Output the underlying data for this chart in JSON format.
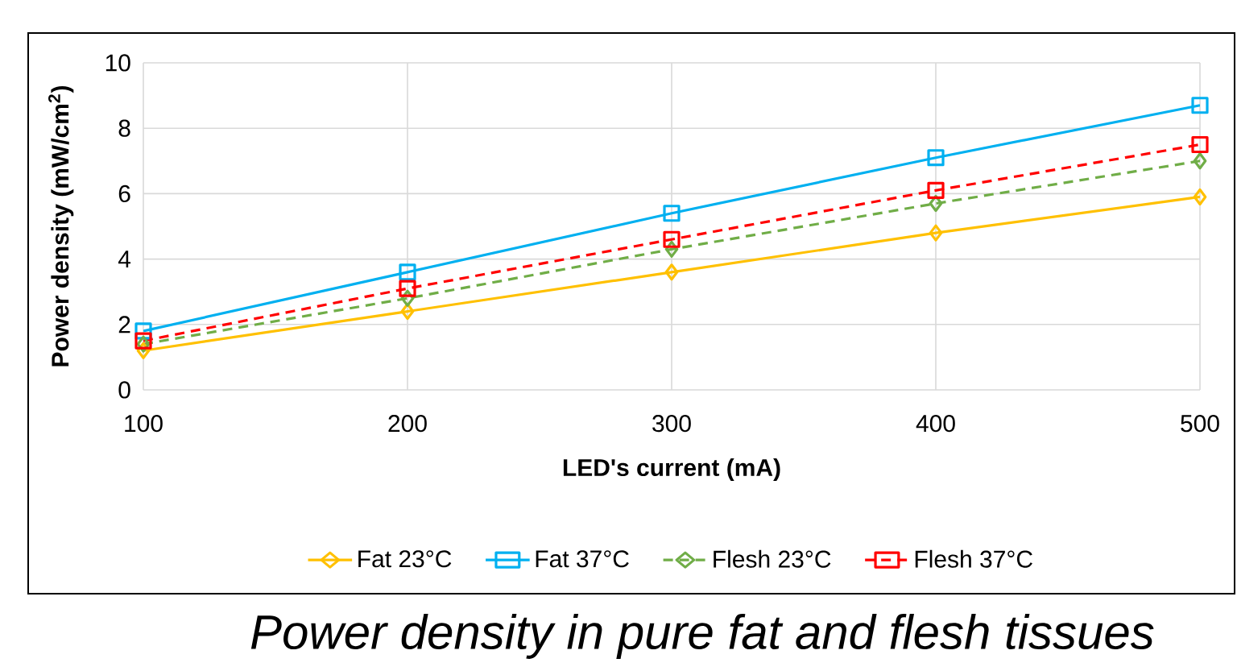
{
  "chart_data": {
    "type": "line",
    "title": "Power density in pure fat and flesh tissues",
    "xlabel": "LED's current (mA)",
    "ylabel": "Power density (mW/cm$^{2}$)",
    "x": [
      100,
      200,
      300,
      400,
      500
    ],
    "series": [
      {
        "name": "Fat 23°C",
        "color": "#ffc000",
        "marker": "diamond",
        "line_style": "solid",
        "values": [
          1.2,
          2.4,
          3.6,
          4.8,
          5.9
        ]
      },
      {
        "name": "Fat 37°C",
        "color": "#00b0f0",
        "marker": "square",
        "line_style": "solid",
        "values": [
          1.8,
          3.6,
          5.4,
          7.1,
          8.7
        ]
      },
      {
        "name": "Flesh 23°C",
        "color": "#70ad47",
        "marker": "diamond",
        "line_style": "dashed",
        "values": [
          1.4,
          2.8,
          4.3,
          5.7,
          7.0
        ]
      },
      {
        "name": "Flesh 37°C",
        "color": "#ff0000",
        "marker": "square",
        "line_style": "dashed",
        "values": [
          1.5,
          3.1,
          4.6,
          6.1,
          7.5
        ]
      }
    ],
    "xlim": [
      100,
      500
    ],
    "ylim": [
      0,
      10
    ],
    "xticks": [
      100,
      200,
      300,
      400,
      500
    ],
    "yticks": [
      0,
      2,
      4,
      6,
      8,
      10
    ],
    "grid": true,
    "legend": "bottom"
  }
}
